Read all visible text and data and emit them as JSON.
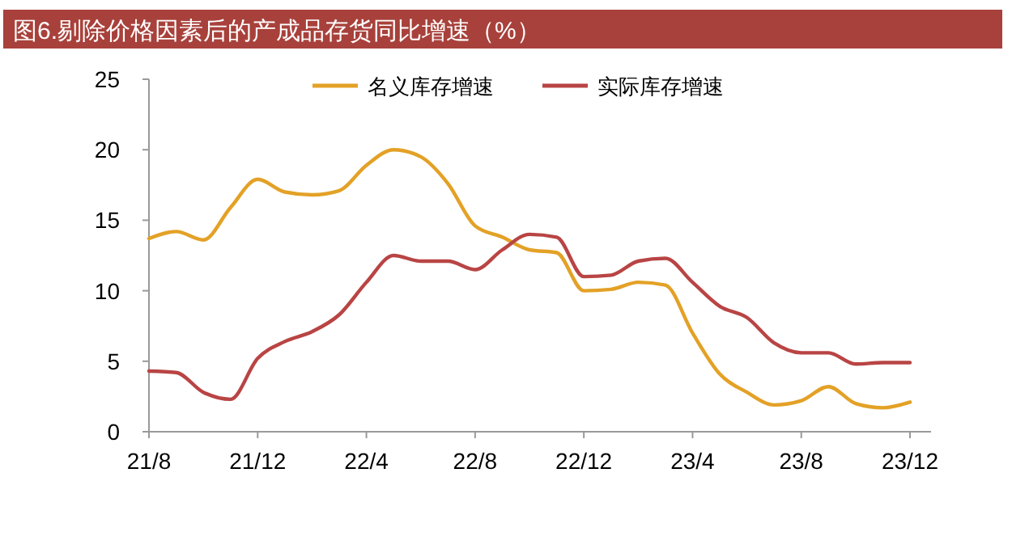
{
  "chart_data": {
    "type": "line",
    "title": "图6.剔除价格因素后的产成品存货同比增速（%）",
    "categories": [
      "21/8",
      null,
      null,
      null,
      "21/12",
      null,
      null,
      null,
      "22/4",
      null,
      null,
      null,
      "22/8",
      null,
      null,
      null,
      "22/12",
      null,
      null,
      null,
      "23/4",
      null,
      null,
      null,
      "23/8",
      null,
      null,
      null,
      "23/12"
    ],
    "series": [
      {
        "name": "名义库存增速",
        "color": "#e3a126",
        "values": [
          13.7,
          14.2,
          13.6,
          15.9,
          17.9,
          17.0,
          16.8,
          17.1,
          18.9,
          20.0,
          19.5,
          17.6,
          14.6,
          13.8,
          12.9,
          12.7,
          10.0,
          10.1,
          10.6,
          10.4,
          7.0,
          4.1,
          2.8,
          1.9,
          2.2,
          3.2,
          2.0,
          1.7,
          2.1
        ]
      },
      {
        "name": "实际库存增速",
        "color": "#b94444",
        "values": [
          4.3,
          4.2,
          2.8,
          2.3,
          5.2,
          6.4,
          7.1,
          8.3,
          10.6,
          12.5,
          12.1,
          12.1,
          11.5,
          12.9,
          14.0,
          13.8,
          11.0,
          11.1,
          12.1,
          12.3,
          10.6,
          8.9,
          8.1,
          6.3,
          5.6,
          5.6,
          4.8,
          4.9,
          4.9
        ]
      }
    ],
    "ylim": [
      0,
      25
    ],
    "yticks": [
      0,
      5,
      10,
      15,
      20,
      25
    ],
    "grid": false,
    "legend": "top",
    "line_style": "solid",
    "marker": "none"
  }
}
